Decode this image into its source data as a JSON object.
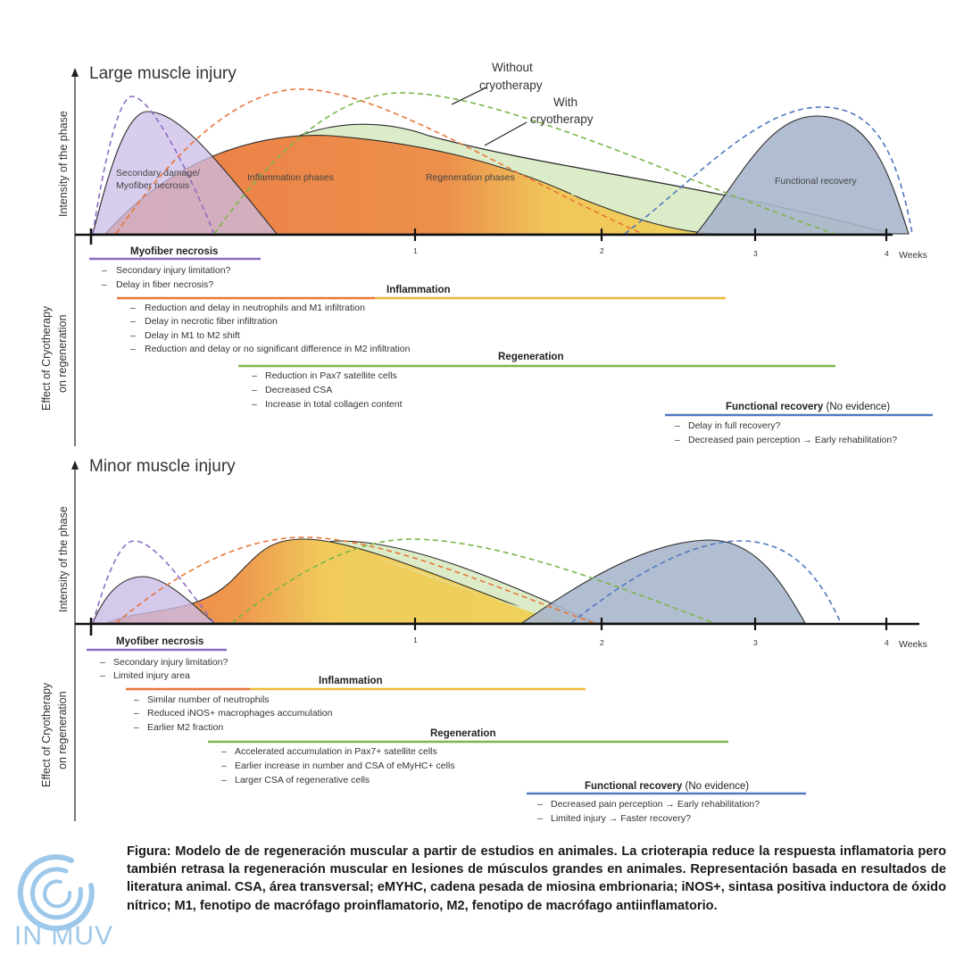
{
  "colors": {
    "necrosis": "#8e6cc4",
    "necrosis_fill": "#cbbce6",
    "inflammation": "#e9753a",
    "regeneration_fill": "#eed25a",
    "regeneration_line": "#7ab648",
    "regeneration_green_fill": "#dcecc8",
    "recovery": "#4f79c0",
    "recovery_fill": "#a9b6cb",
    "logo": "#9ec8ea"
  },
  "panels": [
    {
      "title": "Large muscle injury",
      "y_axis_label": "Intensity of the phase",
      "effect_axis_label": [
        "Effect of  Cryotherapy",
        "on regeneration"
      ],
      "phase_labels": {
        "necrosis": [
          "Secondary damage/",
          "Myofiber necrosis"
        ],
        "inflammation": "Inflammation phases",
        "regeneration": "Regeneration phases",
        "recovery": "Functional recovery"
      },
      "callouts": {
        "without": [
          "Without",
          "cryotherapy"
        ],
        "with": [
          "With",
          "cryotherapy"
        ]
      },
      "x_ticks": [
        "1",
        "2",
        "3",
        "4"
      ],
      "x_unit": "Weeks",
      "effects": [
        {
          "key": "necrosis",
          "heading": "Myofiber necrosis",
          "heading_suffix": "",
          "items": [
            "Secondary injury limitation?",
            "Delay in fiber necrosis?"
          ]
        },
        {
          "key": "inflammation",
          "heading": "Inflammation",
          "heading_suffix": "",
          "items": [
            "Reduction and delay in neutrophils and M1 infiltration",
            "Delay in necrotic fiber infiltration",
            "Delay in M1 to M2 shift",
            "Reduction and delay or no significant difference in M2 infiltration"
          ]
        },
        {
          "key": "regeneration",
          "heading": "Regeneration",
          "heading_suffix": "",
          "items": [
            "Reduction in Pax7 satellite cells",
            "Decreased CSA",
            "Increase in total collagen content"
          ]
        },
        {
          "key": "recovery",
          "heading": "Functional recovery",
          "heading_suffix": " (No evidence)",
          "items": [
            "Delay in full recovery?",
            "Decreased pain perception → Early rehabilitation?"
          ]
        }
      ]
    },
    {
      "title": "Minor muscle injury",
      "y_axis_label": "Intensity of the phase",
      "effect_axis_label": [
        "Effect of  Cryotherapy",
        "on regeneration"
      ],
      "x_ticks": [
        "1",
        "2",
        "3",
        "4"
      ],
      "x_unit": "Weeks",
      "effects": [
        {
          "key": "necrosis",
          "heading": "Myofiber necrosis",
          "heading_suffix": "",
          "items": [
            "Secondary injury limitation?",
            "Limited injury area"
          ]
        },
        {
          "key": "inflammation",
          "heading": "Inflammation",
          "heading_suffix": "",
          "items": [
            "Similar number of neutrophils",
            "Reduced iNOS+ macrophages accumulation",
            "Earlier M2 fraction"
          ]
        },
        {
          "key": "regeneration",
          "heading": "Regeneration",
          "heading_suffix": "",
          "items": [
            "Accelerated accumulation in Pax7+ satellite cells",
            "Earlier increase in number and CSA of eMyHC+ cells",
            "Larger CSA of regenerative cells"
          ]
        },
        {
          "key": "recovery",
          "heading": "Functional recovery",
          "heading_suffix": " (No evidence)",
          "items": [
            "Decreased pain perception → Early rehabilitation?",
            "Limited injury → Faster recovery?"
          ]
        }
      ]
    }
  ],
  "caption": "Figura: Modelo de de regeneración muscular a partir de estudios en animales. La crioterapia reduce la respuesta inflamatoria pero también retrasa la regeneración muscular en lesiones de músculos grandes en animales. Representación basada en resultados de literatura animal. CSA, área transversal; eMYHC, cadena pesada de miosina embrionaria; iNOS+, sintasa positiva inductora de óxido nítrico; M1, fenotipo de macrófago proinflamatorio, M2, fenotipo de macrófago antiinflamatorio.",
  "logo_text": "IN MUV"
}
